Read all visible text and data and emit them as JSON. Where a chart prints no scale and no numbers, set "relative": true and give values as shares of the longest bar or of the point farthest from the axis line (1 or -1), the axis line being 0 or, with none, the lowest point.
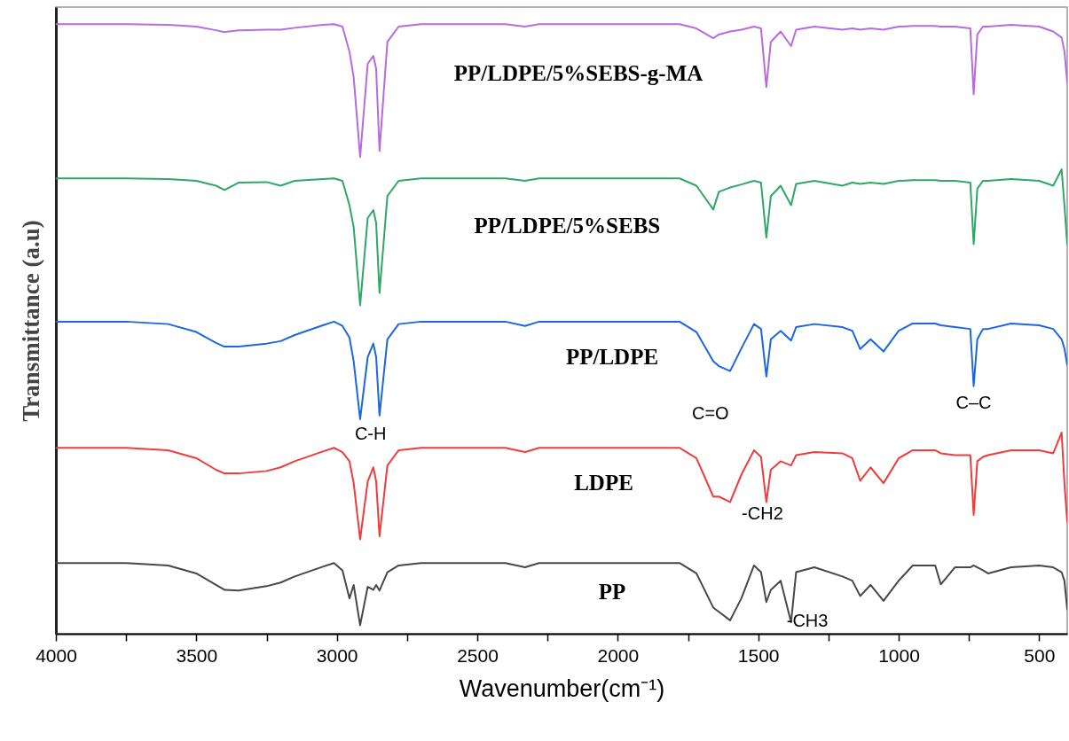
{
  "chart_data": {
    "type": "line",
    "relative": true,
    "xlabel": "Wavenumber(cm⁻¹)",
    "ylabel": "Transmittance  (a.u)",
    "xlim": [
      4000,
      400
    ],
    "xticks": [
      4000,
      {
        "value": 3750,
        "label": null
      },
      3500,
      {
        "value": 3250,
        "label": null
      },
      3000,
      {
        "value": 2750,
        "label": null
      },
      2500,
      {
        "value": 2250,
        "label": null
      },
      2000,
      {
        "value": 1750,
        "label": null
      },
      1500,
      {
        "value": 1250,
        "label": null
      },
      1000,
      {
        "value": 750,
        "label": null
      },
      500
    ],
    "x": [
      4000,
      3750,
      3600,
      3500,
      3430,
      3400,
      3350,
      3250,
      3200,
      3150,
      3050,
      3010,
      2980,
      2955,
      2940,
      2917,
      2890,
      2870,
      2860,
      2848,
      2820,
      2780,
      2700,
      2400,
      2330,
      2280,
      2000,
      1780,
      1720,
      1660,
      1640,
      1600,
      1560,
      1515,
      1490,
      1471,
      1455,
      1420,
      1383,
      1365,
      1300,
      1200,
      1165,
      1137,
      1100,
      1054,
      1000,
      950,
      870,
      850,
      800,
      745,
      733,
      720,
      700,
      682,
      600,
      500,
      450,
      420,
      410,
      400
    ],
    "series": [
      {
        "name": "PP/LDPE/5%SEBS-g-MA",
        "color": "#b76be0",
        "values": [
          1,
          1,
          0.999,
          0.996,
          0.99,
          0.987,
          0.99,
          0.991,
          0.991,
          0.994,
          0.999,
          1,
          0.996,
          0.955,
          0.913,
          0.782,
          0.935,
          0.948,
          0.927,
          0.792,
          0.971,
          0.996,
          1,
          1,
          0.996,
          1,
          1,
          1,
          0.993,
          0.977,
          0.983,
          0.988,
          0.991,
          0.996,
          0.993,
          0.897,
          0.971,
          0.988,
          0.964,
          0.991,
          0.996,
          0.991,
          0.993,
          0.991,
          0.993,
          0.991,
          0.996,
          0.997,
          0.997,
          0.996,
          0.996,
          0.993,
          0.885,
          0.983,
          0.996,
          0.996,
          0.999,
          0.996,
          0.988,
          0.978,
          0.956,
          0.904
        ]
      },
      {
        "name": "PP/LDPE/5%SEBS",
        "color": "#2ea865",
        "values": [
          0.747,
          0.747,
          0.746,
          0.743,
          0.735,
          0.728,
          0.74,
          0.741,
          0.735,
          0.743,
          0.746,
          0.747,
          0.743,
          0.703,
          0.667,
          0.539,
          0.682,
          0.695,
          0.674,
          0.559,
          0.718,
          0.743,
          0.747,
          0.747,
          0.743,
          0.747,
          0.747,
          0.747,
          0.735,
          0.696,
          0.725,
          0.732,
          0.737,
          0.743,
          0.74,
          0.65,
          0.718,
          0.735,
          0.703,
          0.738,
          0.743,
          0.735,
          0.74,
          0.738,
          0.74,
          0.738,
          0.743,
          0.744,
          0.744,
          0.743,
          0.743,
          0.74,
          0.639,
          0.73,
          0.743,
          0.743,
          0.746,
          0.743,
          0.735,
          0.762,
          0.703,
          0.639
        ]
      },
      {
        "name": "PP/LDPE",
        "color": "#1c66e0",
        "values": [
          0.512,
          0.512,
          0.508,
          0.495,
          0.477,
          0.471,
          0.471,
          0.476,
          0.48,
          0.49,
          0.506,
          0.512,
          0.505,
          0.486,
          0.447,
          0.352,
          0.454,
          0.476,
          0.454,
          0.358,
          0.483,
          0.508,
          0.512,
          0.512,
          0.505,
          0.512,
          0.512,
          0.512,
          0.495,
          0.447,
          0.439,
          0.431,
          0.468,
          0.508,
          0.5,
          0.422,
          0.483,
          0.497,
          0.481,
          0.503,
          0.508,
          0.503,
          0.497,
          0.467,
          0.483,
          0.463,
          0.497,
          0.509,
          0.509,
          0.506,
          0.503,
          0.5,
          0.406,
          0.483,
          0.5,
          0.5,
          0.509,
          0.506,
          0.5,
          0.483,
          0.468,
          0.441
        ]
      },
      {
        "name": "LDPE",
        "color": "#f03c3c",
        "values": [
          0.305,
          0.305,
          0.301,
          0.288,
          0.269,
          0.263,
          0.263,
          0.267,
          0.273,
          0.283,
          0.299,
          0.305,
          0.298,
          0.283,
          0.247,
          0.155,
          0.25,
          0.273,
          0.25,
          0.16,
          0.276,
          0.301,
          0.305,
          0.305,
          0.298,
          0.305,
          0.305,
          0.305,
          0.288,
          0.225,
          0.225,
          0.216,
          0.261,
          0.301,
          0.29,
          0.216,
          0.269,
          0.283,
          0.276,
          0.293,
          0.298,
          0.296,
          0.288,
          0.251,
          0.273,
          0.247,
          0.288,
          0.301,
          0.301,
          0.296,
          0.293,
          0.293,
          0.195,
          0.283,
          0.29,
          0.293,
          0.301,
          0.301,
          0.296,
          0.33,
          0.247,
          0.184
        ]
      },
      {
        "name": "PP",
        "color": "#474747",
        "values": [
          0.116,
          0.116,
          0.112,
          0.099,
          0.08,
          0.072,
          0.071,
          0.078,
          0.084,
          0.094,
          0.11,
          0.116,
          0.104,
          0.058,
          0.08,
          0.014,
          0.077,
          0.072,
          0.08,
          0.071,
          0.101,
          0.112,
          0.116,
          0.116,
          0.109,
          0.116,
          0.116,
          0.116,
          0.099,
          0.043,
          0.036,
          0.022,
          0.058,
          0.112,
          0.101,
          0.052,
          0.072,
          0.087,
          0.019,
          0.101,
          0.109,
          0.094,
          0.087,
          0.062,
          0.08,
          0.054,
          0.087,
          0.112,
          0.112,
          0.081,
          0.109,
          0.109,
          0.112,
          0.109,
          0.104,
          0.099,
          0.109,
          0.112,
          0.109,
          0.101,
          0.087,
          0.04
        ]
      }
    ],
    "annotations": [
      "C-H",
      "C=O",
      "C–C",
      "-CH2",
      "-CH3"
    ]
  }
}
